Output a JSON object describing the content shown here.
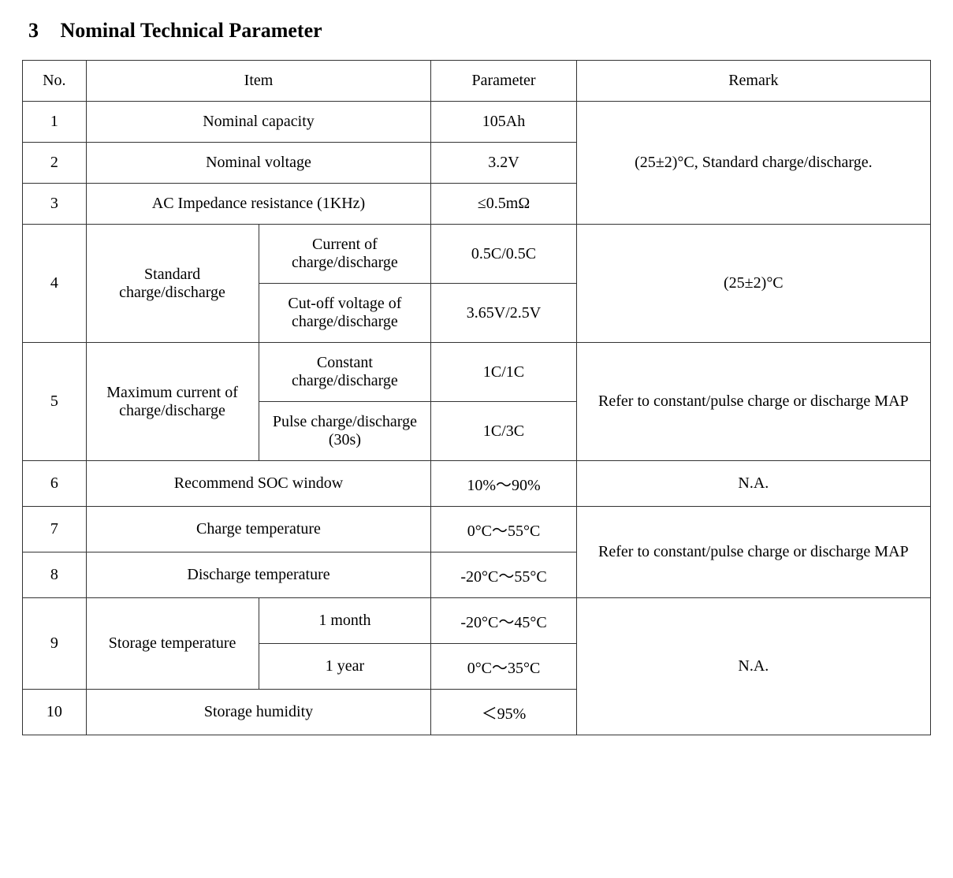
{
  "heading": {
    "number": "3",
    "title": "Nominal Technical Parameter"
  },
  "table": {
    "headers": {
      "no": "No.",
      "item": "Item",
      "parameter": "Parameter",
      "remark": "Remark"
    },
    "columns_pct": [
      7,
      19,
      19,
      16,
      39
    ],
    "border_color": "#333333",
    "background_color": "#ffffff",
    "text_color": "#000000",
    "font_family": "Times New Roman",
    "font_size_pt": 15,
    "heading_font_size_pt": 20
  },
  "rows": {
    "r1": {
      "no": "1",
      "item": "Nominal capacity",
      "param": "105Ah"
    },
    "r2": {
      "no": "2",
      "item": "Nominal voltage",
      "param": "3.2V"
    },
    "r3": {
      "no": "3",
      "item": "AC Impedance resistance (1KHz)",
      "param": "≤0.5mΩ"
    },
    "r4": {
      "no": "4",
      "item_a": "Standard charge/discharge",
      "sub1": "Current of charge/discharge",
      "param1": "0.5C/0.5C",
      "sub2": "Cut-off voltage of charge/discharge",
      "param2": "3.65V/2.5V"
    },
    "r5": {
      "no": "5",
      "item_a": "Maximum current of charge/discharge",
      "sub1": "Constant charge/discharge",
      "param1": "1C/1C",
      "sub2": "Pulse charge/discharge (30s)",
      "param2": "1C/3C"
    },
    "r6": {
      "no": "6",
      "item": "Recommend SOC window",
      "param": "10%～90%"
    },
    "r7": {
      "no": "7",
      "item": "Charge temperature",
      "param": "0°C～55°C"
    },
    "r8": {
      "no": "8",
      "item": "Discharge temperature",
      "param": "-20°C～55°C"
    },
    "r9": {
      "no": "9",
      "item_a": "Storage temperature",
      "sub1": "1 month",
      "param1": "-20°C～45°C",
      "sub2": "1 year",
      "param2": "0°C～35°C"
    },
    "r10": {
      "no": "10",
      "item": "Storage humidity",
      "param": "＜95%"
    }
  },
  "remarks": {
    "r1_3": "(25±2)°C, Standard charge/discharge.",
    "r4": "(25±2)°C",
    "r5": "Refer to constant/pulse charge or discharge MAP",
    "r6": "N.A.",
    "r7_8": "Refer to constant/pulse charge or discharge MAP",
    "r9_10": "N.A."
  }
}
